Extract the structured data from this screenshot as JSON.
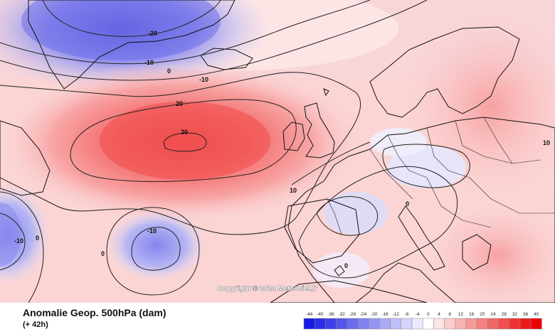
{
  "title": "Anomalie Geop. 500hPa (dam)",
  "subtitle": "(+ 42h)",
  "copyright": "Copyright © 2024 Meteociel.fr",
  "contour_labels": [
    "-20",
    "-10",
    "0",
    "-10",
    "20",
    "30",
    "10",
    "-10",
    "0",
    "-10",
    "0",
    "0",
    "0",
    "10"
  ],
  "legend": {
    "ticks": [
      "-44",
      "-40",
      "-36",
      "-32",
      "-28",
      "-24",
      "-20",
      "-16",
      "-12",
      "-8",
      "-4",
      "0",
      "4",
      "8",
      "12",
      "16",
      "20",
      "24",
      "28",
      "32",
      "36",
      "40"
    ],
    "colors": [
      "#1a1ae6",
      "#2d2de8",
      "#4040ea",
      "#5555ec",
      "#6b6bee",
      "#8080f0",
      "#9595f2",
      "#aaaaf4",
      "#bfbff7",
      "#d4d4fa",
      "#eaeafd",
      "#ffffff",
      "#fde6e6",
      "#fbcccc",
      "#f9b3b3",
      "#f79999",
      "#f58080",
      "#f36666",
      "#f14d4d",
      "#ef3333",
      "#ed1a1a",
      "#eb0000"
    ]
  }
}
